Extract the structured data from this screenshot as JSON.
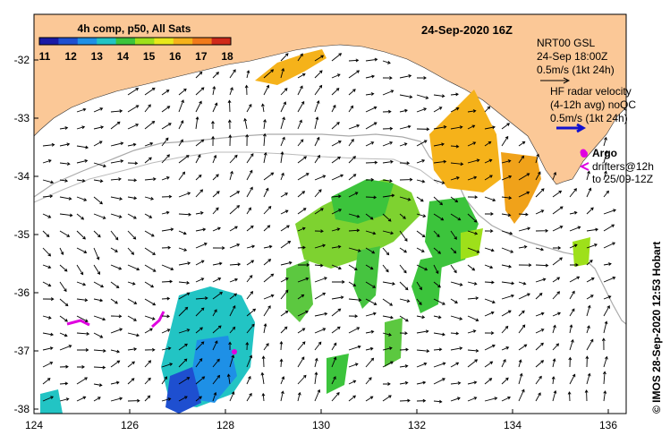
{
  "title": "24-Sep-2020 16Z",
  "colorbar": {
    "label": "4h comp, p50, All Sats",
    "ticks": [
      "11",
      "12",
      "13",
      "14",
      "15",
      "16",
      "17",
      "18"
    ],
    "colors": [
      "#1a1aa6",
      "#1e4fd0",
      "#1e90e6",
      "#22c4c4",
      "#3cc43c",
      "#9ee01a",
      "#e8e81a",
      "#f5b21a",
      "#f07a1a",
      "#d02a1a"
    ]
  },
  "legend": {
    "gsl_title": "NRT00 GSL",
    "gsl_time": "24-Sep 18:00Z",
    "gsl_scale": "0.5m/s (1kt 24h)",
    "hf_title": "HF radar velocity",
    "hf_avg": "(4-12h avg) noQC",
    "hf_scale": "0.5m/s (1kt 24h)",
    "argo": "Argo",
    "drifters": "drifters@12h",
    "drifters_to": "to 25/09-12Z"
  },
  "axes": {
    "x_ticks": [
      "124",
      "126",
      "128",
      "130",
      "132",
      "134",
      "136"
    ],
    "y_ticks": [
      "-32",
      "-33",
      "-34",
      "-35",
      "-36",
      "-37",
      "-38"
    ]
  },
  "credit": "© IMOS 28-Sep-2020 12:53 Hobart",
  "colors": {
    "land": "#fbc897",
    "frame": "#000000",
    "argo": "#e000e0",
    "hf": "#1010d0"
  }
}
